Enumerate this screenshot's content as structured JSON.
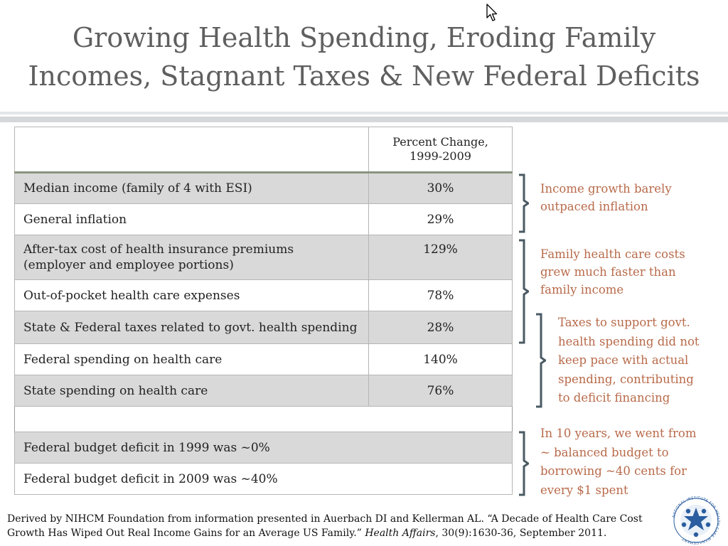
{
  "title": {
    "line1": "Growing Health Spending, Eroding Family",
    "line2": "Incomes, Stagnant Taxes &  New Federal Deficits"
  },
  "table": {
    "header": {
      "label": "",
      "value_line1": "Percent Change,",
      "value_line2": "1999-2009"
    },
    "rows": [
      {
        "label": "Median income (family of 4 with ESI)",
        "value": "30%"
      },
      {
        "label": "General inflation",
        "value": "29%"
      },
      {
        "label_line1": "After-tax cost of health insurance premiums",
        "label_line2": "(employer and employee portions)",
        "value": "129%"
      },
      {
        "label": "Out-of-pocket health care expenses",
        "value": "78%"
      },
      {
        "label": "State & Federal taxes related to govt. health spending",
        "value": "28%"
      },
      {
        "label": "Federal spending on health care",
        "value": "140%"
      },
      {
        "label": "State spending on health care",
        "value": "76%"
      },
      {
        "label": "Federal budget deficit in 1999 was ~0%"
      },
      {
        "label": "Federal budget deficit in 2009 was ~40%"
      }
    ]
  },
  "notes": [
    {
      "lines": [
        "Income growth barely",
        "outpaced inflation"
      ]
    },
    {
      "lines": [
        "Family health care costs",
        "grew much faster than",
        "family income"
      ]
    },
    {
      "lines": [
        "Taxes to support govt.",
        "health spending did not",
        "keep pace with actual",
        "spending, contributing",
        "to deficit financing"
      ]
    },
    {
      "lines": [
        "In 10 years, we went from",
        "~ balanced budget to",
        "borrowing ~40 cents for",
        "every $1 spent"
      ]
    }
  ],
  "footer": {
    "line1": "Derived by NIHCM Foundation from information presented in Auerbach DI and Kellerman AL. “A Decade of Health Care Cost",
    "line2_start": "Growth Has Wiped Out Real Income Gains for an Average US Family.”",
    "line2_journal": "Health Affairs",
    "line2_end": ", 30(9):1630-36, September 2011."
  },
  "logo": {
    "arc_text": "NATIONAL INSTITUTE FOR HEALTH CARE MANAGEMENT"
  },
  "colors": {
    "title": "#5f5f5f",
    "note": "#b86a4a",
    "brace": "#4a5a63",
    "row_shade": "#d9d9d9",
    "logo_blue": "#2a5d9f"
  }
}
